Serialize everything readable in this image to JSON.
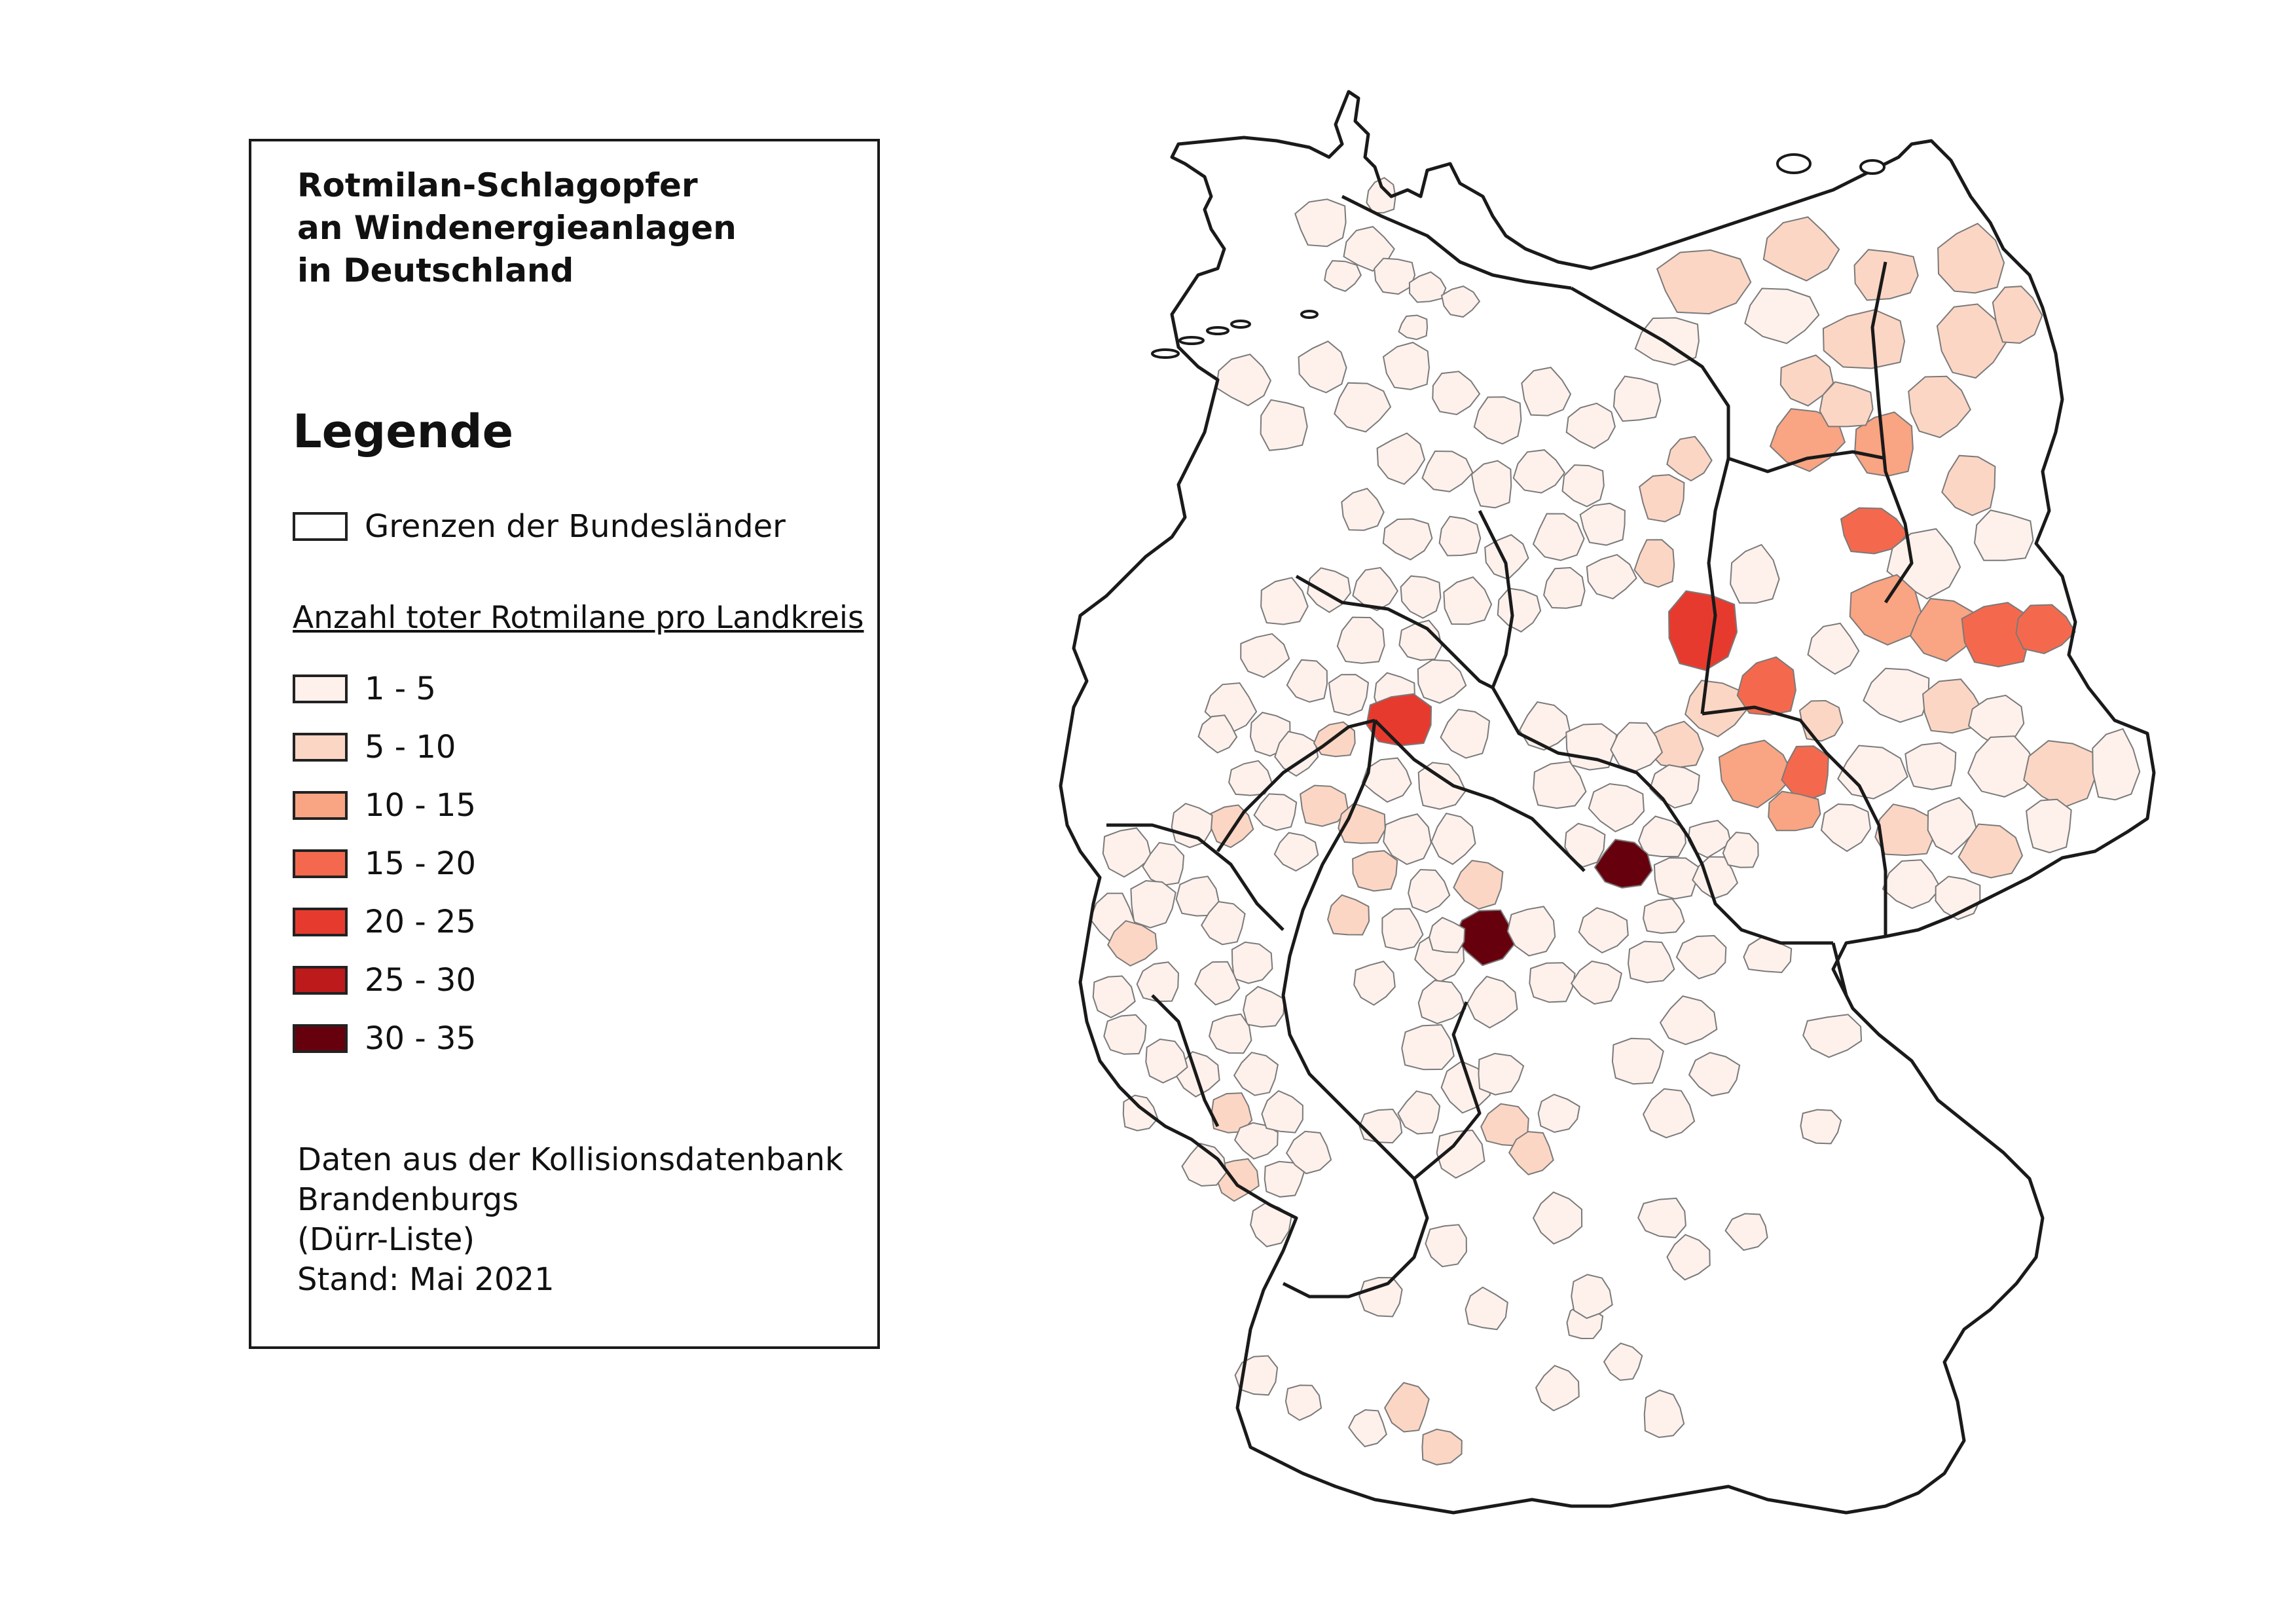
{
  "legend": {
    "title_lines": [
      "Rotmilan-Schlagopfer",
      "an Windenergieanlagen",
      "in Deutschland"
    ],
    "heading": "Legende",
    "boundary_label": "Grenzen der Bundesländer",
    "classes_title": "Anzahl toter Rotmilane pro Landkreis",
    "classes": [
      {
        "label": "1 - 5",
        "color": "#fef1ec"
      },
      {
        "label": "5 - 10",
        "color": "#fcd6c4"
      },
      {
        "label": "10 - 15",
        "color": "#f9a482"
      },
      {
        "label": "15 - 20",
        "color": "#f4694d"
      },
      {
        "label": "20 - 25",
        "color": "#e73a2e"
      },
      {
        "label": "25 - 30",
        "color": "#bd1a1c"
      },
      {
        "label": "30 - 35",
        "color": "#67000d"
      }
    ],
    "source_lines": [
      "Daten aus der Kollisionsdatenbank",
      "Brandenburgs",
      "(Dürr-Liste)",
      "Stand: Mai 2021"
    ]
  },
  "map": {
    "boundary_color": "#1a1a1a",
    "district_border_color": "#7a7a7a",
    "no_data_color": "#ffffff"
  }
}
